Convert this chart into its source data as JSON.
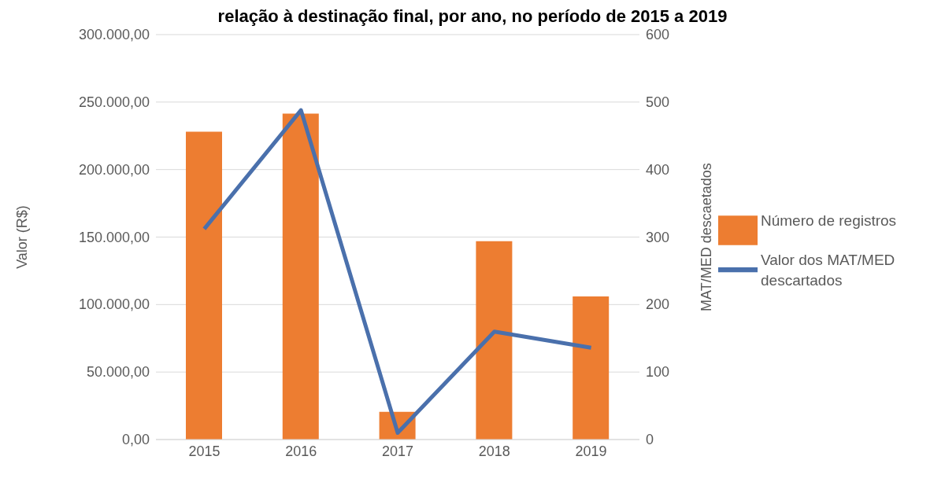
{
  "chart_data": {
    "type": "bar",
    "title": "relação à destinação final, por ano, no período de 2015 a 2019",
    "categories": [
      "2015",
      "2016",
      "2017",
      "2018",
      "2019"
    ],
    "series": [
      {
        "name": "Número de registros",
        "axis": "y2",
        "color": "#ed7d31",
        "values": [
          456,
          483,
          41,
          294,
          212
        ]
      },
      {
        "name": "Valor dos MAT/MED descartados",
        "type": "line",
        "axis": "y",
        "color": "#4a70ac",
        "values": [
          156000,
          244000,
          5000,
          80000,
          68000
        ]
      }
    ],
    "ylabel": "Valor (R$)",
    "y2label": "MAT/MED  descaetados",
    "ylim": [
      0,
      300000
    ],
    "yticks": [
      {
        "value": 0,
        "label": "0,00"
      },
      {
        "value": 50000,
        "label": "50.000,00"
      },
      {
        "value": 100000,
        "label": "100.000,00"
      },
      {
        "value": 150000,
        "label": "150.000,00"
      },
      {
        "value": 200000,
        "label": "200.000,00"
      },
      {
        "value": 250000,
        "label": "250.000,00"
      },
      {
        "value": 300000,
        "label": "300.000,00"
      }
    ],
    "y2lim": [
      0,
      600
    ],
    "y2ticks": [
      0,
      100,
      200,
      300,
      400,
      500,
      600
    ],
    "grid": "y",
    "legend": "right",
    "marker": "none",
    "line_style": "solid"
  }
}
